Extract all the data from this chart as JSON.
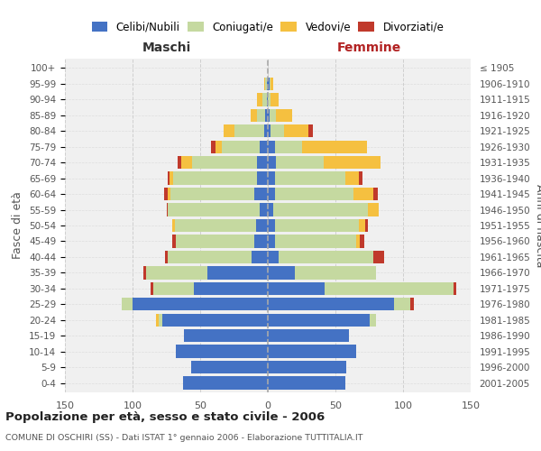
{
  "age_groups": [
    "100+",
    "95-99",
    "90-94",
    "85-89",
    "80-84",
    "75-79",
    "70-74",
    "65-69",
    "60-64",
    "55-59",
    "50-54",
    "45-49",
    "40-44",
    "35-39",
    "30-34",
    "25-29",
    "20-24",
    "15-19",
    "10-14",
    "5-9",
    "0-4"
  ],
  "birth_years": [
    "≤ 1905",
    "1906-1910",
    "1911-1915",
    "1916-1920",
    "1921-1925",
    "1926-1930",
    "1931-1935",
    "1936-1940",
    "1941-1945",
    "1946-1950",
    "1951-1955",
    "1956-1960",
    "1961-1965",
    "1966-1970",
    "1971-1975",
    "1976-1980",
    "1981-1985",
    "1986-1990",
    "1991-1995",
    "1996-2000",
    "2001-2005"
  ],
  "m_cel": [
    0,
    1,
    1,
    2,
    3,
    6,
    8,
    8,
    10,
    6,
    9,
    10,
    12,
    45,
    55,
    100,
    78,
    62,
    68,
    57,
    63
  ],
  "m_con": [
    0,
    1,
    3,
    6,
    22,
    28,
    48,
    62,
    62,
    68,
    60,
    58,
    62,
    45,
    30,
    8,
    3,
    0,
    0,
    0,
    0
  ],
  "m_ved": [
    0,
    1,
    4,
    5,
    8,
    5,
    8,
    3,
    2,
    0,
    2,
    0,
    0,
    0,
    0,
    0,
    2,
    0,
    0,
    0,
    0
  ],
  "m_div": [
    0,
    0,
    0,
    0,
    0,
    3,
    3,
    1,
    3,
    1,
    0,
    3,
    2,
    2,
    2,
    0,
    0,
    0,
    0,
    0,
    0
  ],
  "f_nub": [
    0,
    1,
    0,
    1,
    2,
    5,
    6,
    5,
    5,
    4,
    5,
    5,
    8,
    20,
    42,
    93,
    75,
    60,
    65,
    58,
    57
  ],
  "f_con": [
    0,
    1,
    2,
    5,
    10,
    20,
    35,
    52,
    58,
    70,
    62,
    60,
    70,
    60,
    95,
    12,
    5,
    0,
    0,
    0,
    0
  ],
  "f_ved": [
    0,
    2,
    6,
    12,
    18,
    48,
    42,
    10,
    15,
    8,
    5,
    3,
    0,
    0,
    0,
    0,
    0,
    0,
    0,
    0,
    0
  ],
  "f_div": [
    0,
    0,
    0,
    0,
    3,
    0,
    0,
    3,
    3,
    0,
    2,
    3,
    8,
    0,
    2,
    3,
    0,
    0,
    0,
    0,
    0
  ],
  "color_celibi": "#4472c4",
  "color_coniugati": "#c5d9a0",
  "color_vedovi": "#f5c040",
  "color_divorziati": "#c0392b",
  "xlim": 150,
  "title": "Popolazione per età, sesso e stato civile - 2006",
  "subtitle": "COMUNE DI OSCHIRI (SS) - Dati ISTAT 1° gennaio 2006 - Elaborazione TUTTITALIA.IT",
  "ylabel": "Fasce di età",
  "ylabel_right": "Anni di nascita",
  "xlabel_left": "Maschi",
  "xlabel_right": "Femmine",
  "bg_color": "#ffffff",
  "grid_color": "#cccccc"
}
